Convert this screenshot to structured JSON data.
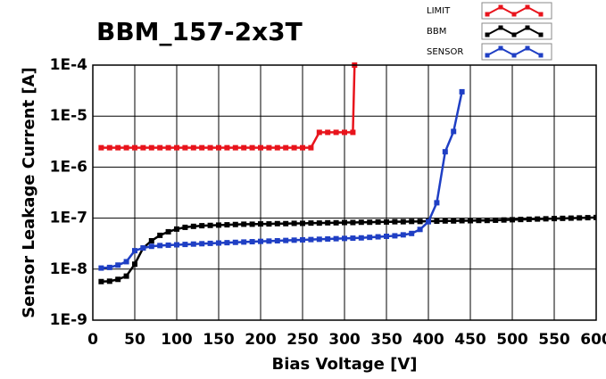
{
  "chart_data": {
    "type": "line",
    "title": "BBM_157-2x3T",
    "x_label": "Bias Voltage [V]",
    "y_label": "Sensor Leakage Current [A]",
    "xlim": [
      0,
      600
    ],
    "xticks": [
      0,
      50,
      100,
      150,
      200,
      250,
      300,
      350,
      400,
      450,
      500,
      550,
      600
    ],
    "ylim": [
      1e-09,
      0.0001
    ],
    "ylog": true,
    "grid": true,
    "yticks": [
      {
        "value": 1e-09,
        "label": "1E-9"
      },
      {
        "value": 1e-08,
        "label": "1E-8"
      },
      {
        "value": 1e-07,
        "label": "1E-7"
      },
      {
        "value": 1e-06,
        "label": "1E-6"
      },
      {
        "value": 1e-05,
        "label": "1E-5"
      },
      {
        "value": 0.0001,
        "label": "1E-4"
      }
    ],
    "legend": "top-right",
    "series": [
      {
        "name": "LIMIT",
        "color": "#e8141c",
        "x": [
          10,
          20,
          30,
          40,
          50,
          60,
          70,
          80,
          90,
          100,
          110,
          120,
          130,
          140,
          150,
          160,
          170,
          180,
          190,
          200,
          210,
          220,
          230,
          240,
          250,
          260,
          270,
          280,
          290,
          300,
          310,
          312
        ],
        "values": [
          2.4e-06,
          2.4e-06,
          2.4e-06,
          2.4e-06,
          2.4e-06,
          2.4e-06,
          2.4e-06,
          2.4e-06,
          2.4e-06,
          2.4e-06,
          2.4e-06,
          2.4e-06,
          2.4e-06,
          2.4e-06,
          2.4e-06,
          2.4e-06,
          2.4e-06,
          2.4e-06,
          2.4e-06,
          2.4e-06,
          2.4e-06,
          2.4e-06,
          2.4e-06,
          2.4e-06,
          2.4e-06,
          2.4e-06,
          4.8e-06,
          4.8e-06,
          4.8e-06,
          4.8e-06,
          4.8e-06,
          0.0001
        ]
      },
      {
        "name": "BBM",
        "color": "#000000",
        "x": [
          10,
          20,
          30,
          40,
          50,
          60,
          70,
          80,
          90,
          100,
          110,
          120,
          130,
          140,
          150,
          160,
          170,
          180,
          190,
          200,
          210,
          220,
          230,
          240,
          250,
          260,
          270,
          280,
          290,
          300,
          310,
          320,
          330,
          340,
          350,
          360,
          370,
          380,
          390,
          400,
          410,
          420,
          430,
          440,
          450,
          460,
          470,
          480,
          490,
          500,
          510,
          520,
          530,
          540,
          550,
          560,
          570,
          580,
          590,
          600
        ],
        "values": [
          5.7e-09,
          5.8e-09,
          6.3e-09,
          7.3e-09,
          1.25e-08,
          2.6e-08,
          3.6e-08,
          4.6e-08,
          5.4e-08,
          6.1e-08,
          6.6e-08,
          6.9e-08,
          7.1e-08,
          7.2e-08,
          7.3e-08,
          7.4e-08,
          7.5e-08,
          7.6e-08,
          7.6e-08,
          7.7e-08,
          7.7e-08,
          7.8e-08,
          7.8e-08,
          7.9e-08,
          7.9e-08,
          8e-08,
          8e-08,
          8.1e-08,
          8.1e-08,
          8.2e-08,
          8.2e-08,
          8.3e-08,
          8.3e-08,
          8.4e-08,
          8.4e-08,
          8.5e-08,
          8.5e-08,
          8.6e-08,
          8.6e-08,
          8.7e-08,
          8.7e-08,
          8.8e-08,
          8.8e-08,
          8.9e-08,
          8.9e-08,
          9e-08,
          9e-08,
          9.1e-08,
          9.2e-08,
          9.3e-08,
          9.4e-08,
          9.5e-08,
          9.6e-08,
          9.7e-08,
          9.8e-08,
          9.9e-08,
          1e-07,
          1.01e-07,
          1.02e-07,
          1.03e-07
        ]
      },
      {
        "name": "SENSOR",
        "color": "#1f3fc4",
        "x": [
          10,
          20,
          30,
          40,
          50,
          60,
          70,
          80,
          90,
          100,
          110,
          120,
          130,
          140,
          150,
          160,
          170,
          180,
          190,
          200,
          210,
          220,
          230,
          240,
          250,
          260,
          270,
          280,
          290,
          300,
          310,
          320,
          330,
          340,
          350,
          360,
          370,
          380,
          390,
          400,
          410,
          420,
          430,
          440
        ],
        "values": [
          1.05e-08,
          1.08e-08,
          1.2e-08,
          1.4e-08,
          2.3e-08,
          2.6e-08,
          2.8e-08,
          2.9e-08,
          2.95e-08,
          3e-08,
          3.05e-08,
          3.1e-08,
          3.15e-08,
          3.2e-08,
          3.25e-08,
          3.3e-08,
          3.35e-08,
          3.4e-08,
          3.45e-08,
          3.5e-08,
          3.55e-08,
          3.6e-08,
          3.65e-08,
          3.7e-08,
          3.75e-08,
          3.8e-08,
          3.85e-08,
          3.9e-08,
          3.95e-08,
          4e-08,
          4.05e-08,
          4.1e-08,
          4.2e-08,
          4.3e-08,
          4.4e-08,
          4.5e-08,
          4.7e-08,
          5e-08,
          6e-08,
          8.5e-08,
          2e-07,
          2e-06,
          5e-06,
          3e-05
        ]
      }
    ]
  }
}
